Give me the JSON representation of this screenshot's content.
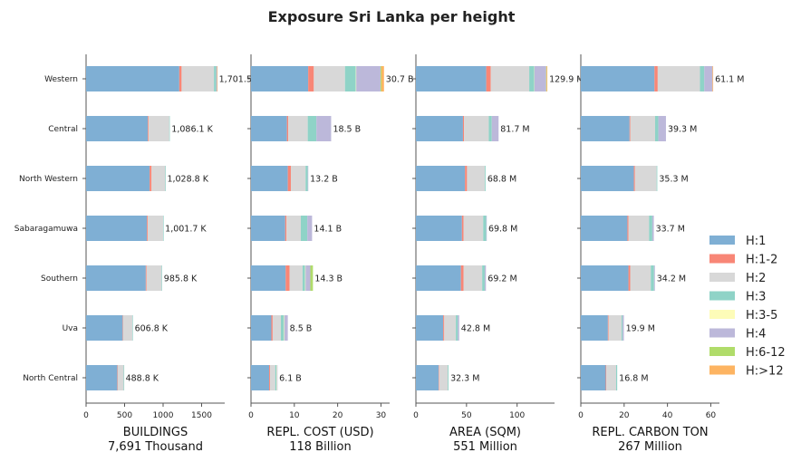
{
  "chart_data": {
    "type": "bar",
    "orientation": "horizontal",
    "stacked": true,
    "title": "Exposure Sri Lanka per height",
    "categories": [
      "Western",
      "Central",
      "North Western",
      "Sabaragamuwa",
      "Southern",
      "Uva",
      "North Central"
    ],
    "legend": {
      "placement": "right",
      "entries": [
        {
          "name": "H:1",
          "color": "#7fafd4"
        },
        {
          "name": "H:1-2",
          "color": "#f88676"
        },
        {
          "name": "H:2",
          "color": "#d8d8d8"
        },
        {
          "name": "H:3",
          "color": "#8fd3c7"
        },
        {
          "name": "H:3-5",
          "color": "#fdfcb8"
        },
        {
          "name": "H:4",
          "color": "#bcb8da"
        },
        {
          "name": "H:6-12",
          "color": "#b0dc6a"
        },
        {
          "name": "H:>12",
          "color": "#fdb462"
        }
      ]
    },
    "panels": [
      {
        "xlabel": "BUILDINGS",
        "subtitle": "7,691 Thousand",
        "xlim": [
          0,
          1800
        ],
        "xticks": [
          0,
          500,
          1000,
          1500
        ],
        "totals_labels": [
          "1,701.5 K",
          "1,086.1 K",
          "1,028.8 K",
          "1,001.7 K",
          "985.8 K",
          "606.8 K",
          "488.8 K"
        ],
        "values": [
          [
            1210,
            30,
            420,
            30,
            0,
            10,
            0,
            1.5
          ],
          [
            800,
            10,
            270,
            6,
            0,
            0,
            0,
            0
          ],
          [
            825,
            25,
            178,
            1,
            0,
            0,
            0,
            0
          ],
          [
            790,
            10,
            200,
            2,
            0,
            0,
            0,
            0
          ],
          [
            775,
            10,
            195,
            6,
            0,
            0,
            0,
            0
          ],
          [
            475,
            5,
            120,
            7,
            0,
            0,
            0,
            0
          ],
          [
            405,
            5,
            78,
            1,
            0,
            0,
            0,
            0
          ]
        ]
      },
      {
        "xlabel": "REPL. COST (USD)",
        "subtitle": "118 Billion",
        "xlim": [
          0,
          32
        ],
        "xticks": [
          0,
          10,
          20,
          30
        ],
        "totals_labels": [
          "30.7 B",
          "18.5 B",
          "13.2 B",
          "14.1 B",
          "14.3 B",
          "8.5 B",
          "6.1 B"
        ],
        "values": [
          [
            13.2,
            1.3,
            7.2,
            2.5,
            0.1,
            5.6,
            0.2,
            0.6
          ],
          [
            8.3,
            0.3,
            4.5,
            2.0,
            0,
            3.4,
            0,
            0
          ],
          [
            8.5,
            0.7,
            3.4,
            0.5,
            0,
            0.1,
            0,
            0
          ],
          [
            7.9,
            0.3,
            3.3,
            1.5,
            0,
            1.1,
            0,
            0
          ],
          [
            8.0,
            0.9,
            3.0,
            0.6,
            0.1,
            1.1,
            0.6,
            0
          ],
          [
            4.7,
            0.3,
            1.9,
            0.7,
            0.1,
            0.8,
            0,
            0
          ],
          [
            4.2,
            0.2,
            1.2,
            0.3,
            0.1,
            0.1,
            0,
            0
          ]
        ]
      },
      {
        "xlabel": "AREA (SQM)",
        "subtitle": "551 Million",
        "xlim": [
          0,
          137
        ],
        "xticks": [
          0,
          50,
          100
        ],
        "totals_labels": [
          "129.9 M",
          "81.7 M",
          "68.8 M",
          "69.8 M",
          "69.2 M",
          "42.8 M",
          "32.3 M"
        ],
        "values": [
          [
            69.5,
            4.5,
            38.0,
            5.0,
            0.2,
            11.5,
            0.5,
            0.7
          ],
          [
            46.5,
            1.0,
            24.5,
            3.0,
            0,
            6.7,
            0,
            0
          ],
          [
            48.5,
            2.0,
            17.5,
            0.8,
            0,
            0,
            0,
            0
          ],
          [
            45.5,
            1.5,
            19.5,
            3.0,
            0,
            0.3,
            0,
            0
          ],
          [
            44.5,
            2.5,
            18.5,
            2.5,
            0,
            1.2,
            0,
            0
          ],
          [
            27.0,
            1.0,
            11.5,
            2.0,
            0,
            1.3,
            0,
            0
          ],
          [
            22.5,
            0.5,
            8.5,
            0.8,
            0,
            0,
            0,
            0
          ]
        ]
      },
      {
        "xlabel": "REPL. CARBON TON",
        "subtitle": "267 Million",
        "xlim": [
          0,
          64
        ],
        "xticks": [
          0,
          20,
          40,
          60
        ],
        "totals_labels": [
          "61.1 M",
          "39.3 M",
          "35.3 M",
          "33.7 M",
          "34.2 M",
          "19.9 M",
          "16.8 M"
        ],
        "values": [
          [
            34.0,
            1.5,
            19.5,
            2.0,
            0,
            3.8,
            0,
            0.3
          ],
          [
            22.5,
            0.3,
            11.5,
            1.5,
            0,
            3.5,
            0,
            0
          ],
          [
            24.5,
            0.5,
            10.0,
            0.3,
            0,
            0,
            0,
            0
          ],
          [
            21.5,
            0.5,
            9.5,
            1.5,
            0,
            0.7,
            0,
            0
          ],
          [
            22.0,
            0.8,
            9.5,
            1.5,
            0,
            0.4,
            0,
            0
          ],
          [
            12.5,
            0.3,
            6.0,
            0.5,
            0,
            0.6,
            0,
            0
          ],
          [
            11.5,
            0.3,
            4.5,
            0.5,
            0,
            0,
            0,
            0
          ]
        ]
      }
    ]
  }
}
